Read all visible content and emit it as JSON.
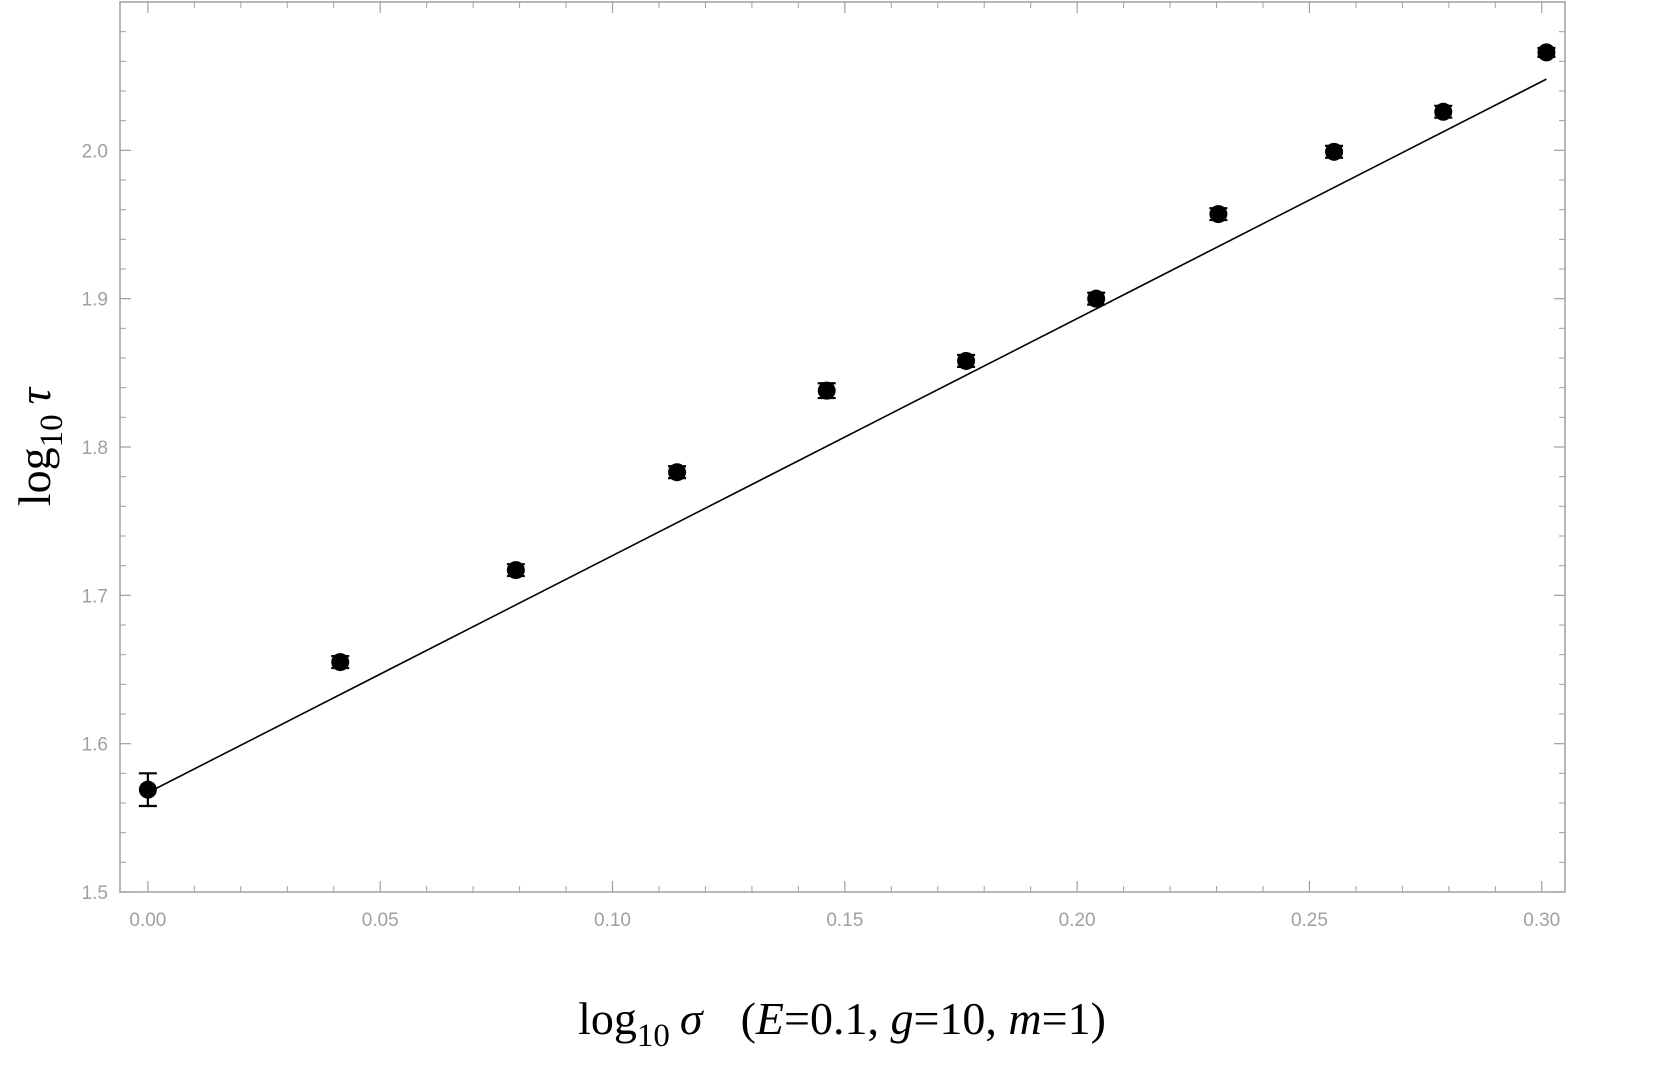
{
  "chart_data": {
    "type": "scatter",
    "xlabel": {
      "prefix": "log",
      "sub": "10",
      "symbol": "σ",
      "params_open": "(",
      "E_name": "E",
      "E_value": "=0.1, ",
      "g_name": "g",
      "g_value": "=10, ",
      "m_name": "m",
      "m_value": "=1)"
    },
    "ylabel": {
      "prefix": "log",
      "sub": "10",
      "symbol": "τ"
    },
    "xlim": [
      -0.006,
      0.305
    ],
    "ylim": [
      1.5,
      2.1
    ],
    "xticks": [
      {
        "value": 0.0,
        "label": "0.00"
      },
      {
        "value": 0.05,
        "label": "0.05"
      },
      {
        "value": 0.1,
        "label": "0.10"
      },
      {
        "value": 0.15,
        "label": "0.15"
      },
      {
        "value": 0.2,
        "label": "0.20"
      },
      {
        "value": 0.25,
        "label": "0.25"
      },
      {
        "value": 0.3,
        "label": "0.30"
      }
    ],
    "yticks": [
      {
        "value": 1.5,
        "label": "1.5"
      },
      {
        "value": 1.6,
        "label": "1.6"
      },
      {
        "value": 1.7,
        "label": "1.7"
      },
      {
        "value": 1.8,
        "label": "1.8"
      },
      {
        "value": 1.9,
        "label": "1.9"
      },
      {
        "value": 2.0,
        "label": "2.0"
      }
    ],
    "series": [
      {
        "points": [
          {
            "x": 0.0,
            "y": 1.569,
            "err": 0.011
          },
          {
            "x": 0.0414,
            "y": 1.655,
            "err": 0.004
          },
          {
            "x": 0.0792,
            "y": 1.717,
            "err": 0.004
          },
          {
            "x": 0.1139,
            "y": 1.783,
            "err": 0.004
          },
          {
            "x": 0.1461,
            "y": 1.838,
            "err": 0.005
          },
          {
            "x": 0.1761,
            "y": 1.858,
            "err": 0.004
          },
          {
            "x": 0.2041,
            "y": 1.9,
            "err": 0.004
          },
          {
            "x": 0.2304,
            "y": 1.957,
            "err": 0.004
          },
          {
            "x": 0.2553,
            "y": 1.999,
            "err": 0.004
          },
          {
            "x": 0.2788,
            "y": 2.026,
            "err": 0.004
          },
          {
            "x": 0.301,
            "y": 2.066,
            "err": 0.003
          }
        ]
      }
    ],
    "fit_line": {
      "x": [
        0.0,
        0.301
      ],
      "y": [
        1.567,
        2.048
      ]
    },
    "grid": false,
    "colors": {
      "frame": "#9aa2a2",
      "tick_label": "#9aa2a2",
      "points": "#000000",
      "line": "#000000"
    }
  }
}
